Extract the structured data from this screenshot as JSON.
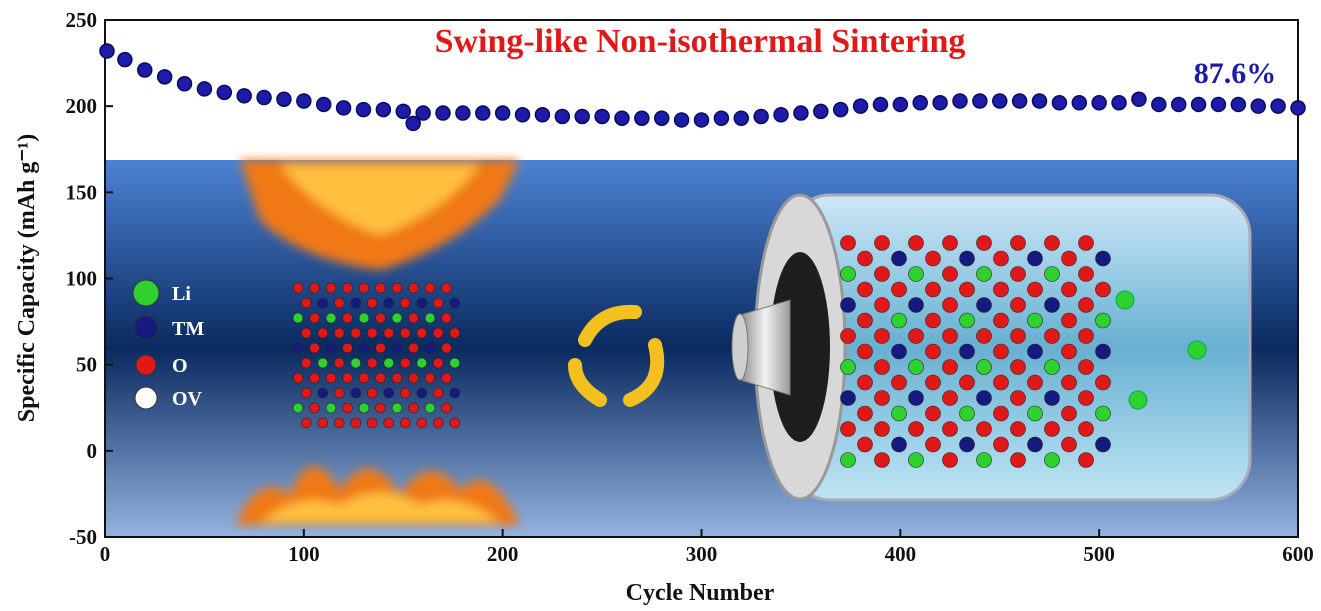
{
  "chart_data": {
    "type": "scatter",
    "title": "Swing-like Non-isothermal Sintering",
    "annotation": "87.6%",
    "x_label": "Cycle Number",
    "y_label": "Specific Capacity (mAh g⁻¹)",
    "x": [
      1,
      10,
      20,
      30,
      40,
      50,
      60,
      70,
      80,
      90,
      100,
      110,
      120,
      130,
      140,
      150,
      155,
      160,
      170,
      180,
      190,
      200,
      210,
      220,
      230,
      240,
      250,
      260,
      270,
      280,
      290,
      300,
      310,
      320,
      330,
      340,
      350,
      360,
      370,
      380,
      390,
      400,
      410,
      420,
      430,
      440,
      450,
      460,
      470,
      480,
      490,
      500,
      510,
      520,
      530,
      540,
      550,
      560,
      570,
      580,
      590,
      600
    ],
    "values": [
      232,
      227,
      221,
      217,
      213,
      210,
      208,
      206,
      205,
      204,
      203,
      201,
      199,
      198,
      198,
      197,
      190,
      196,
      196,
      196,
      196,
      196,
      195,
      195,
      194,
      194,
      194,
      193,
      193,
      193,
      192,
      192,
      193,
      193,
      194,
      195,
      196,
      197,
      198,
      200,
      201,
      201,
      202,
      202,
      203,
      203,
      203,
      203,
      203,
      202,
      202,
      202,
      202,
      204,
      201,
      201,
      201,
      201,
      201,
      200,
      200,
      199
    ],
    "color": "#1c1ca8",
    "xlim": [
      0,
      600
    ],
    "xticks": [
      0,
      100,
      200,
      300,
      400,
      500,
      600
    ],
    "ylim": [
      -50,
      250
    ],
    "yticks": [
      -50,
      0,
      50,
      100,
      150,
      200,
      250
    ],
    "grid": false,
    "legend_items": [
      {
        "label": "Li",
        "color": "#2ed12e"
      },
      {
        "label": "TM",
        "color": "#151a80"
      },
      {
        "label": "O",
        "color": "#e01818"
      },
      {
        "label": "OV",
        "color": "#ffffff"
      }
    ]
  }
}
